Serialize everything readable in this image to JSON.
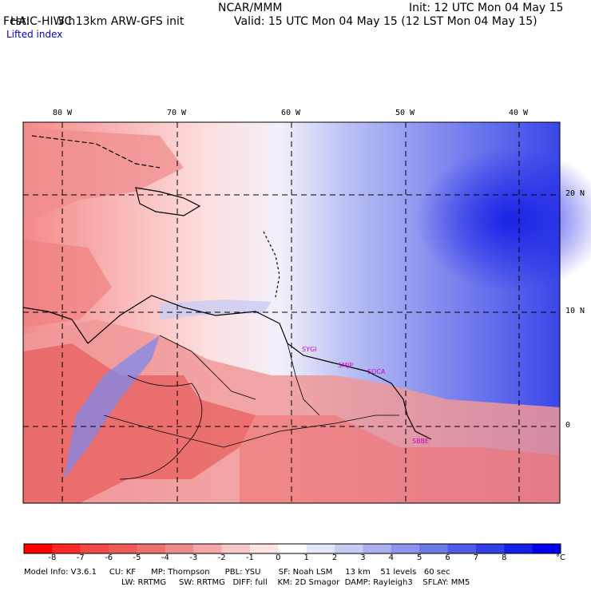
{
  "header": {
    "title": "HAIC-HIWC 13km ARW-GFS init",
    "org": "NCAR/MMM",
    "init": "Init: 12 UTC Mon 04 May 15",
    "fcst_label": "Fcst:",
    "fcst_value": "3 h",
    "valid": "Valid: 15 UTC Mon 04 May 15 (12 LST Mon 04 May 15)",
    "field": "Lifted index"
  },
  "map": {
    "longitude_labels": [
      "80 W",
      "70 W",
      "60 W",
      "50 W",
      "40 W"
    ],
    "latitude_labels": [
      "20 N",
      "10 N",
      "0"
    ],
    "station_labels": [
      "SYGI",
      "SMJP",
      "SOCA",
      "SBBE"
    ],
    "colors": {
      "negative_strong": "#e0141e",
      "negative_mid": "#f28080",
      "neutral": "#ffffff",
      "positive_mid": "#a8aef0",
      "positive_strong": "#1414e6"
    }
  },
  "colorbar": {
    "labels": [
      "-8",
      "-7",
      "-6",
      "-5",
      "-4",
      "-3",
      "-2",
      "-1",
      "0",
      "1",
      "2",
      "3",
      "4",
      "5",
      "6",
      "7",
      "8"
    ],
    "unit": "°C",
    "colors": [
      "#ff0000",
      "#ff2828",
      "#f24848",
      "#ee5a5a",
      "#ec6e6e",
      "#ef8a8a",
      "#f3a8a8",
      "#f8c8c8",
      "#fce4e4",
      "#ffffff",
      "#e4e6fa",
      "#c8ccf5",
      "#aab0f0",
      "#8c94ec",
      "#6e78e8",
      "#505ce6",
      "#3240e6",
      "#1420e6",
      "#0000ee"
    ]
  },
  "footer": {
    "line1": "Model Info: V3.6.1     CU: KF      MP: Thompson      PBL: YSU       SF: Noah LSM     13 km    51 levels   60 sec",
    "line2": "LW: RRTMG     SW: RRTMG   DIFF: full    KM: 2D Smagor  DAMP: Rayleigh3    SFLAY: MM5"
  }
}
